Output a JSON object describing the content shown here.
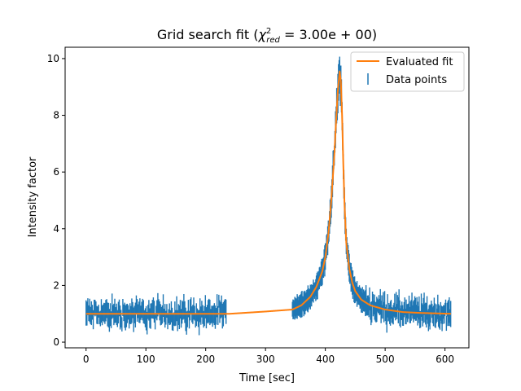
{
  "chart_data": {
    "type": "scatter",
    "title_main": "Grid search fit (",
    "title_chi": "χ",
    "title_sup": "2",
    "title_sub": "red",
    "title_rest": " = 3.00e + 00)",
    "xlabel": "Time [sec]",
    "ylabel": "Intensity factor",
    "xlim": [
      -35,
      640
    ],
    "ylim": [
      -0.2,
      10.4
    ],
    "x_ticks": [
      0,
      100,
      200,
      300,
      400,
      500,
      600
    ],
    "x_tick_labels": [
      "0",
      "100",
      "200",
      "300",
      "400",
      "500",
      "600"
    ],
    "y_ticks": [
      0,
      2,
      4,
      6,
      8,
      10
    ],
    "y_tick_labels": [
      "0",
      "2",
      "4",
      "6",
      "8",
      "10"
    ],
    "grid": false,
    "legend_position": "top-right",
    "series": [
      {
        "name": "Evaluated fit",
        "kind": "line",
        "color": "#ff7f0e",
        "x": [
          0,
          100,
          200,
          240,
          300,
          345,
          360,
          375,
          385,
          395,
          400,
          405,
          410,
          415,
          418,
          421,
          424,
          426,
          428,
          430,
          432,
          435,
          440,
          445,
          450,
          460,
          475,
          500,
          530,
          560,
          610
        ],
        "y": [
          1.0,
          1.0,
          1.0,
          1.0,
          1.08,
          1.15,
          1.3,
          1.6,
          1.95,
          2.5,
          3.0,
          3.8,
          5.0,
          6.6,
          7.8,
          8.9,
          9.55,
          9.2,
          8.0,
          6.3,
          4.9,
          3.5,
          2.6,
          2.1,
          1.8,
          1.5,
          1.3,
          1.15,
          1.06,
          1.03,
          1.0
        ]
      },
      {
        "name": "Data points",
        "kind": "errorbar",
        "color": "#1f77b4",
        "segments": [
          {
            "x_start": 0,
            "x_end": 235,
            "step": 1.5,
            "level": 1.0,
            "spread": 0.28,
            "err": 0.32
          },
          {
            "x_start": 345,
            "x_end": 468,
            "step": 1.0,
            "level": "fit",
            "spread": 0.1,
            "err": 0.35
          },
          {
            "x_start": 468,
            "x_end": 610,
            "step": 1.2,
            "level": "fit",
            "spread": 0.28,
            "err": 0.33
          }
        ]
      }
    ]
  }
}
